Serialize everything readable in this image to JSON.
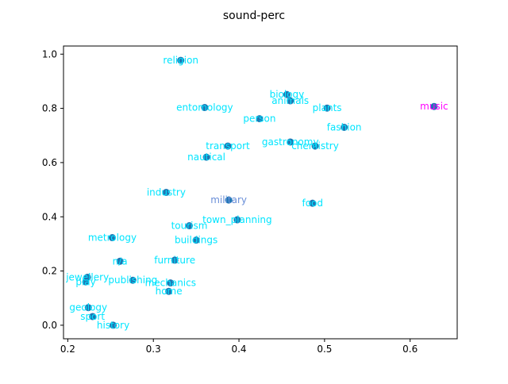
{
  "chart_data": {
    "type": "scatter",
    "title": "sound-perc",
    "xlabel": "",
    "ylabel": "",
    "xlim": [
      0.195,
      0.655
    ],
    "ylim": [
      -0.05,
      1.03
    ],
    "xticks": [
      0.2,
      0.3,
      0.4,
      0.5,
      0.6
    ],
    "yticks": [
      0.0,
      0.2,
      0.4,
      0.6,
      0.8,
      1.0
    ],
    "xtick_labels": [
      "0.2",
      "0.3",
      "0.4",
      "0.5",
      "0.6"
    ],
    "ytick_labels": [
      "0.0",
      "0.2",
      "0.4",
      "0.6",
      "0.8",
      "1.0"
    ],
    "grid": false,
    "marker_color": "#1f77b4",
    "label_color": "#00e5ff",
    "points": [
      {
        "label": "religion",
        "x": 0.332,
        "y": 0.977,
        "label_color": "#00e5ff"
      },
      {
        "label": "biology",
        "x": 0.456,
        "y": 0.851,
        "label_color": "#00e5ff"
      },
      {
        "label": "animals",
        "x": 0.46,
        "y": 0.828,
        "label_color": "#00e5ff"
      },
      {
        "label": "plants",
        "x": 0.503,
        "y": 0.801,
        "label_color": "#00e5ff"
      },
      {
        "label": "entomology",
        "x": 0.36,
        "y": 0.803,
        "label_color": "#00e5ff"
      },
      {
        "label": "music",
        "x": 0.628,
        "y": 0.807,
        "label_color": "#ff00ff"
      },
      {
        "label": "person",
        "x": 0.424,
        "y": 0.762,
        "label_color": "#00e5ff"
      },
      {
        "label": "fashion",
        "x": 0.523,
        "y": 0.73,
        "label_color": "#00e5ff"
      },
      {
        "label": "gastronomy",
        "x": 0.46,
        "y": 0.676,
        "label_color": "#00e5ff"
      },
      {
        "label": "chemistry",
        "x": 0.489,
        "y": 0.661,
        "label_color": "#00e5ff"
      },
      {
        "label": "transport",
        "x": 0.387,
        "y": 0.661,
        "label_color": "#00e5ff"
      },
      {
        "label": "nautical",
        "x": 0.362,
        "y": 0.62,
        "label_color": "#00e5ff"
      },
      {
        "label": "industry",
        "x": 0.315,
        "y": 0.49,
        "label_color": "#00e5ff"
      },
      {
        "label": "military",
        "x": 0.388,
        "y": 0.462,
        "label_color": "#6a8fd8"
      },
      {
        "label": "food",
        "x": 0.486,
        "y": 0.45,
        "label_color": "#00e5ff"
      },
      {
        "label": "town_planning",
        "x": 0.398,
        "y": 0.389,
        "label_color": "#00e5ff"
      },
      {
        "label": "tourism",
        "x": 0.342,
        "y": 0.367,
        "label_color": "#00e5ff"
      },
      {
        "label": "metrology",
        "x": 0.252,
        "y": 0.323,
        "label_color": "#00e5ff"
      },
      {
        "label": "buildings",
        "x": 0.35,
        "y": 0.314,
        "label_color": "#00e5ff"
      },
      {
        "label": "furniture",
        "x": 0.325,
        "y": 0.24,
        "label_color": "#00e5ff"
      },
      {
        "label": "n/a",
        "x": 0.261,
        "y": 0.236,
        "label_color": "#00e5ff"
      },
      {
        "label": "jewellery",
        "x": 0.223,
        "y": 0.177,
        "label_color": "#00e5ff"
      },
      {
        "label": "play",
        "x": 0.221,
        "y": 0.16,
        "label_color": "#00e5ff"
      },
      {
        "label": "publishing",
        "x": 0.276,
        "y": 0.166,
        "label_color": "#00e5ff"
      },
      {
        "label": "mechanics",
        "x": 0.32,
        "y": 0.156,
        "label_color": "#00e5ff"
      },
      {
        "label": "home",
        "x": 0.318,
        "y": 0.125,
        "label_color": "#00e5ff"
      },
      {
        "label": "geology",
        "x": 0.224,
        "y": 0.065,
        "label_color": "#00e5ff"
      },
      {
        "label": "sport",
        "x": 0.229,
        "y": 0.032,
        "label_color": "#00e5ff"
      },
      {
        "label": "history",
        "x": 0.253,
        "y": 0.0,
        "label_color": "#00e5ff"
      }
    ]
  }
}
